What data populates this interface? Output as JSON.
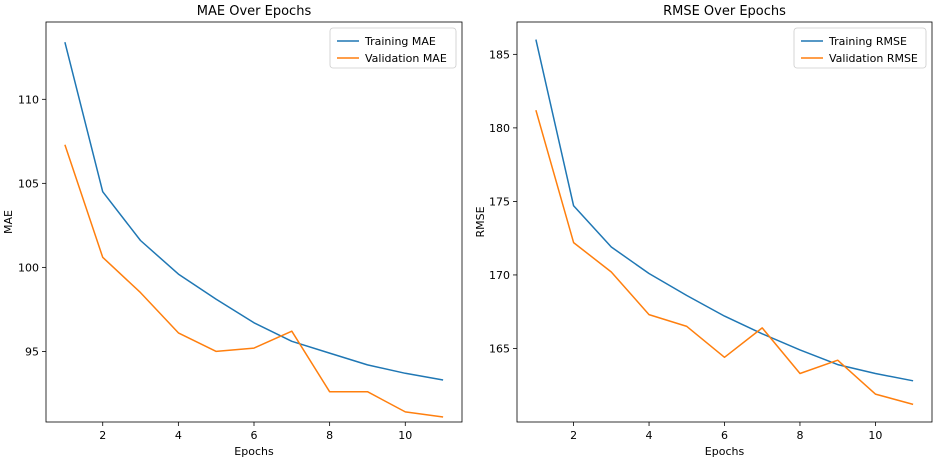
{
  "chart_data": [
    {
      "type": "line",
      "title": "MAE Over Epochs",
      "xlabel": "Epochs",
      "ylabel": "MAE",
      "x": [
        1,
        2,
        3,
        4,
        5,
        6,
        7,
        8,
        9,
        10,
        11
      ],
      "xlim": [
        0.5,
        11.5
      ],
      "ylim": [
        90.8,
        114.6
      ],
      "xticks": [
        2,
        4,
        6,
        8,
        10
      ],
      "yticks": [
        95,
        100,
        105,
        110
      ],
      "grid": false,
      "legend_position": "upper-right",
      "series": [
        {
          "name": "Training MAE",
          "color": "#1f77b4",
          "values": [
            113.4,
            104.5,
            101.6,
            99.6,
            98.1,
            96.7,
            95.6,
            94.9,
            94.2,
            93.7,
            93.3
          ]
        },
        {
          "name": "Validation MAE",
          "color": "#ff7f0e",
          "values": [
            107.3,
            100.6,
            98.5,
            96.1,
            95.0,
            95.2,
            96.2,
            92.6,
            92.6,
            91.4,
            91.1
          ]
        }
      ]
    },
    {
      "type": "line",
      "title": "RMSE Over Epochs",
      "xlabel": "Epochs",
      "ylabel": "RMSE",
      "x": [
        1,
        2,
        3,
        4,
        5,
        6,
        7,
        8,
        9,
        10,
        11
      ],
      "xlim": [
        0.5,
        11.5
      ],
      "ylim": [
        160.0,
        187.2
      ],
      "xticks": [
        2,
        4,
        6,
        8,
        10
      ],
      "yticks": [
        165,
        170,
        175,
        180,
        185
      ],
      "grid": false,
      "legend_position": "upper-right",
      "series": [
        {
          "name": "Training RMSE",
          "color": "#1f77b4",
          "values": [
            186.0,
            174.7,
            171.9,
            170.1,
            168.6,
            167.2,
            166.0,
            164.9,
            163.9,
            163.3,
            162.8
          ]
        },
        {
          "name": "Validation RMSE",
          "color": "#ff7f0e",
          "values": [
            181.2,
            172.2,
            170.2,
            167.3,
            166.5,
            164.4,
            166.4,
            163.3,
            164.2,
            161.9,
            161.2
          ]
        }
      ]
    }
  ]
}
